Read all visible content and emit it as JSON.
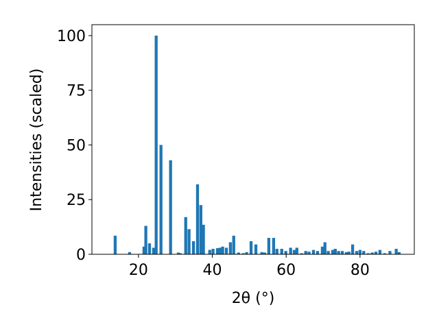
{
  "chart_data": {
    "type": "bar",
    "xlabel": "2θ (°)",
    "ylabel": "Intensities (scaled)",
    "color": "#1f77b4",
    "x": [
      13.7,
      17.6,
      21.5,
      22.0,
      23.0,
      24.1,
      24.8,
      26.1,
      28.7,
      30.8,
      31.3,
      32.8,
      33.7,
      34.9,
      36.0,
      36.9,
      37.6,
      39.3,
      40.2,
      41.4,
      42.1,
      42.8,
      43.8,
      44.9,
      45.8,
      47.1,
      48.4,
      49.3,
      50.5,
      51.8,
      53.4,
      54.2,
      55.3,
      56.6,
      57.5,
      58.8,
      59.9,
      61.2,
      62.2,
      62.9,
      64.2,
      65.3,
      66.2,
      67.4,
      68.5,
      69.8,
      70.5,
      71.4,
      72.6,
      73.3,
      74.2,
      75.2,
      76.3,
      77.0,
      78.0,
      79.1,
      80.0,
      81.0,
      82.2,
      83.3,
      84.3,
      85.4,
      86.7,
      88.1,
      89.8,
      90.6
    ],
    "values": [
      8.5,
      1,
      3.5,
      13,
      5,
      3,
      100,
      50,
      43,
      0.8,
      0.5,
      17,
      11.5,
      6,
      32,
      22.5,
      13.5,
      2,
      2.5,
      2.8,
      3,
      3.5,
      3,
      5.5,
      8.5,
      0.8,
      0.5,
      1,
      6,
      4.5,
      1,
      0.8,
      7.5,
      7.5,
      2.5,
      2.5,
      1.5,
      3,
      2,
      3,
      0.5,
      1.5,
      1.2,
      2,
      1.5,
      3.5,
      5.5,
      1.5,
      2,
      2.5,
      1.5,
      1.5,
      1,
      1.2,
      4.5,
      1.5,
      2,
      1.5,
      0.5,
      0.8,
      1.2,
      2,
      0.5,
      1.5,
      2.5,
      1
    ],
    "xlim": [
      7.4,
      94.7
    ],
    "ylim": [
      0,
      105
    ],
    "xticks": [
      20,
      40,
      60,
      80
    ],
    "yticks": [
      0,
      25,
      50,
      75,
      100
    ]
  }
}
